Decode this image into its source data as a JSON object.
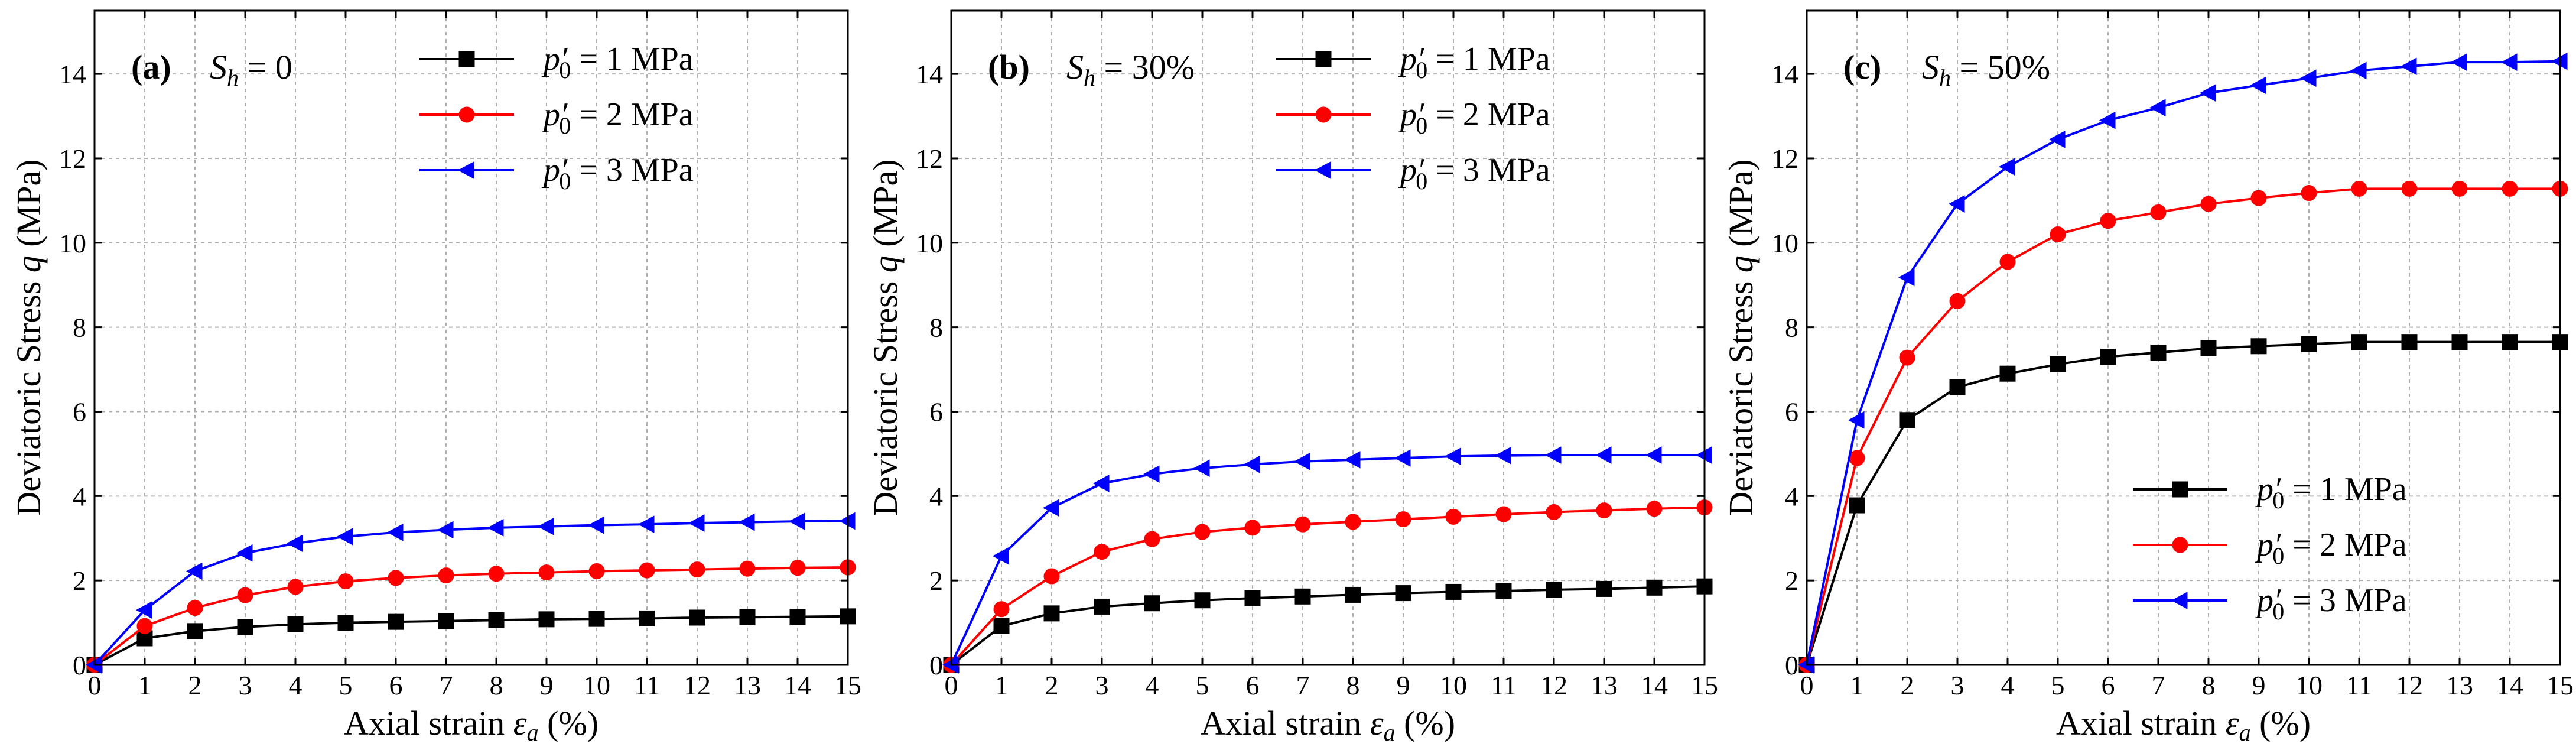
{
  "chart_data": [
    {
      "type": "line",
      "panel_label": "(a)",
      "condition": {
        "symbol": "S",
        "subscript": "h",
        "text": " = 0"
      },
      "xlabel": {
        "text": "Axial strain ",
        "symbol": "ε",
        "subscript": "a",
        "unit": " (%)"
      },
      "ylabel": {
        "text": "Deviatoric Stress ",
        "symbol": "q",
        "unit": " (MPa)"
      },
      "xlim": [
        0,
        15
      ],
      "ylim": [
        0,
        15.5
      ],
      "xticks": [
        0,
        1,
        2,
        3,
        4,
        5,
        6,
        7,
        8,
        9,
        10,
        11,
        12,
        13,
        14,
        15
      ],
      "yticks": [
        0,
        2,
        4,
        6,
        8,
        10,
        12,
        14
      ],
      "grid": true,
      "legend_position": "top-right",
      "x": [
        0,
        1,
        2,
        3,
        4,
        5,
        6,
        7,
        8,
        9,
        10,
        11,
        12,
        13,
        14,
        15
      ],
      "series": [
        {
          "name": "p′0 = 1 MPa",
          "label_symbol": "p′",
          "label_sub": "0",
          "label_rest": " = 1 MPa",
          "color": "#000000",
          "marker": "square",
          "values": [
            0,
            0.63,
            0.8,
            0.9,
            0.96,
            1.0,
            1.02,
            1.04,
            1.06,
            1.08,
            1.09,
            1.1,
            1.12,
            1.13,
            1.14,
            1.15
          ]
        },
        {
          "name": "p′0 = 2 MPa",
          "label_symbol": "p′",
          "label_sub": "0",
          "label_rest": " = 2 MPa",
          "color": "#ff0000",
          "marker": "circle",
          "values": [
            0,
            0.92,
            1.35,
            1.65,
            1.85,
            1.98,
            2.06,
            2.12,
            2.16,
            2.19,
            2.22,
            2.24,
            2.26,
            2.28,
            2.3,
            2.31
          ]
        },
        {
          "name": "p′0 = 3 MPa",
          "label_symbol": "p′",
          "label_sub": "0",
          "label_rest": " = 3 MPa",
          "color": "#0000ff",
          "marker": "triangle-left",
          "values": [
            0,
            1.3,
            2.22,
            2.65,
            2.88,
            3.04,
            3.14,
            3.2,
            3.25,
            3.28,
            3.31,
            3.33,
            3.36,
            3.38,
            3.4,
            3.41
          ]
        }
      ]
    },
    {
      "type": "line",
      "panel_label": "(b)",
      "condition": {
        "symbol": "S",
        "subscript": "h",
        "text": " = 30%"
      },
      "xlabel": {
        "text": "Axial strain ",
        "symbol": "ε",
        "subscript": "a",
        "unit": " (%)"
      },
      "ylabel": {
        "text": "Deviatoric Stress ",
        "symbol": "q",
        "unit": " (MPa)"
      },
      "xlim": [
        0,
        15
      ],
      "ylim": [
        0,
        15.5
      ],
      "xticks": [
        0,
        1,
        2,
        3,
        4,
        5,
        6,
        7,
        8,
        9,
        10,
        11,
        12,
        13,
        14,
        15
      ],
      "yticks": [
        0,
        2,
        4,
        6,
        8,
        10,
        12,
        14
      ],
      "grid": true,
      "legend_position": "top-right",
      "x": [
        0,
        1,
        2,
        3,
        4,
        5,
        6,
        7,
        8,
        9,
        10,
        11,
        12,
        13,
        14,
        15
      ],
      "series": [
        {
          "name": "p′0 = 1 MPa",
          "label_symbol": "p′",
          "label_sub": "0",
          "label_rest": " = 1 MPa",
          "color": "#000000",
          "marker": "square",
          "values": [
            0,
            0.92,
            1.22,
            1.38,
            1.46,
            1.53,
            1.58,
            1.62,
            1.66,
            1.7,
            1.73,
            1.75,
            1.78,
            1.8,
            1.83,
            1.86
          ]
        },
        {
          "name": "p′0 = 2 MPa",
          "label_symbol": "p′",
          "label_sub": "0",
          "label_rest": " = 2 MPa",
          "color": "#ff0000",
          "marker": "circle",
          "values": [
            0,
            1.32,
            2.1,
            2.68,
            2.98,
            3.15,
            3.25,
            3.33,
            3.39,
            3.45,
            3.51,
            3.57,
            3.62,
            3.66,
            3.7,
            3.73
          ]
        },
        {
          "name": "p′0 = 3 MPa",
          "label_symbol": "p′",
          "label_sub": "0",
          "label_rest": " = 3 MPa",
          "color": "#0000ff",
          "marker": "triangle-left",
          "values": [
            0,
            2.58,
            3.72,
            4.3,
            4.52,
            4.66,
            4.75,
            4.82,
            4.86,
            4.9,
            4.94,
            4.96,
            4.97,
            4.97,
            4.97,
            4.97
          ]
        }
      ]
    },
    {
      "type": "line",
      "panel_label": "(c)",
      "condition": {
        "symbol": "S",
        "subscript": "h",
        "text": " = 50%"
      },
      "xlabel": {
        "text": "Axial strain ",
        "symbol": "ε",
        "subscript": "a",
        "unit": " (%)"
      },
      "ylabel": {
        "text": "Deviatoric Stress ",
        "symbol": "q",
        "unit": " (MPa)"
      },
      "xlim": [
        0,
        15
      ],
      "ylim": [
        0,
        15.5
      ],
      "xticks": [
        0,
        1,
        2,
        3,
        4,
        5,
        6,
        7,
        8,
        9,
        10,
        11,
        12,
        13,
        14,
        15
      ],
      "yticks": [
        0,
        2,
        4,
        6,
        8,
        10,
        12,
        14
      ],
      "grid": true,
      "legend_position": "bottom-right",
      "x": [
        0,
        1,
        2,
        3,
        4,
        5,
        6,
        7,
        8,
        9,
        10,
        11,
        12,
        13,
        14,
        15
      ],
      "series": [
        {
          "name": "p′0 = 1 MPa",
          "label_symbol": "p′",
          "label_sub": "0",
          "label_rest": " = 1 MPa",
          "color": "#000000",
          "marker": "square",
          "values": [
            0,
            3.78,
            5.8,
            6.58,
            6.9,
            7.12,
            7.3,
            7.4,
            7.5,
            7.55,
            7.6,
            7.65,
            7.65,
            7.65,
            7.65,
            7.65
          ]
        },
        {
          "name": "p′0 = 2 MPa",
          "label_symbol": "p′",
          "label_sub": "0",
          "label_rest": " = 2 MPa",
          "color": "#ff0000",
          "marker": "circle",
          "values": [
            0,
            4.9,
            7.28,
            8.62,
            9.55,
            10.2,
            10.52,
            10.72,
            10.92,
            11.06,
            11.18,
            11.28,
            11.28,
            11.28,
            11.28,
            11.28
          ]
        },
        {
          "name": "p′0 = 3 MPa",
          "label_symbol": "p′",
          "label_sub": "0",
          "label_rest": " = 3 MPa",
          "color": "#0000ff",
          "marker": "triangle-left",
          "values": [
            0,
            5.8,
            9.18,
            10.92,
            11.8,
            12.45,
            12.9,
            13.2,
            13.55,
            13.73,
            13.9,
            14.08,
            14.18,
            14.28,
            14.28,
            14.3
          ]
        }
      ]
    }
  ]
}
